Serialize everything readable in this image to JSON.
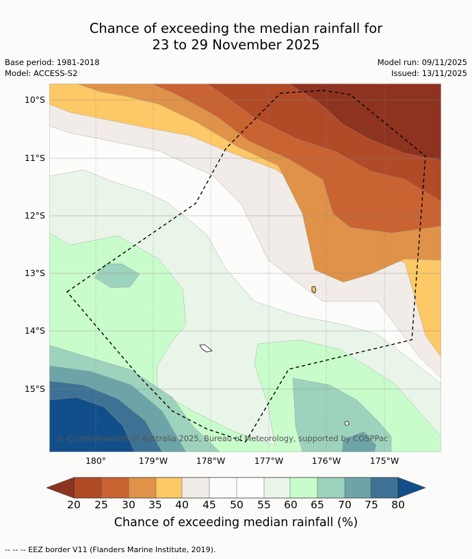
{
  "title": {
    "line1": "Chance of exceeding the median rainfall for",
    "line2": "23 to 29 November 2025"
  },
  "meta": {
    "base_period": "Base period: 1981-2018",
    "model": "Model: ACCESS-S2",
    "model_run": "Model run: 09/11/2025",
    "issued": "Issued: 13/11/2025"
  },
  "map": {
    "latitude_labels": [
      "10°S",
      "11°S",
      "12°S",
      "13°S",
      "14°S",
      "15°S"
    ],
    "longitude_labels": [
      "180°",
      "179°W",
      "178°W",
      "177°W",
      "176°W",
      "175°W"
    ],
    "copyright": "© Commonwealth of Australia 2025, Bureau of Meteorology, supported by COSPPac",
    "boundary": "EEZ border (dashed)"
  },
  "colorbar": {
    "ticks": [
      "20",
      "25",
      "30",
      "35",
      "40",
      "45",
      "50",
      "55",
      "60",
      "65",
      "70",
      "75",
      "80"
    ],
    "label": "Chance of exceeding median rainfall (%)",
    "colors": {
      "lt20": "#8e3320",
      "20-25": "#b04a27",
      "25-30": "#c96332",
      "30-35": "#df9248",
      "35-40": "#fdc866",
      "40-45": "#f1ece7",
      "45-50": "#fcfdfb",
      "50-55": "#fdfefd",
      "55-60": "#eaf5ea",
      "60-65": "#c9fccb",
      "65-70": "#9dd2bc",
      "70-75": "#6da4a8",
      "75-80": "#3e7295",
      "gt80": "#124f8a"
    }
  },
  "footer": "--  --  -- EEZ border V11 (Flanders Marine Institute, 2019)."
}
